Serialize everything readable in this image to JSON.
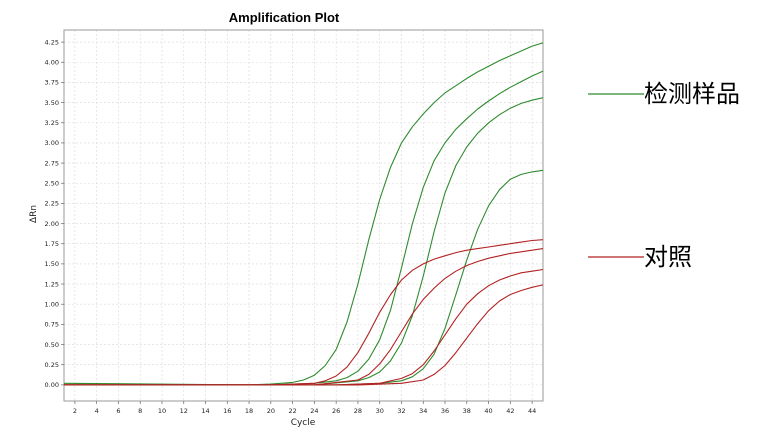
{
  "chart_data": {
    "type": "line",
    "title": "Amplification Plot",
    "xlabel": "Cycle",
    "ylabel": "ΔRn",
    "xlim": [
      1,
      45
    ],
    "ylim": [
      -0.2,
      4.4
    ],
    "x_ticks": [
      2,
      4,
      6,
      8,
      10,
      12,
      14,
      16,
      18,
      20,
      22,
      24,
      26,
      28,
      30,
      32,
      34,
      36,
      38,
      40,
      42,
      44
    ],
    "y_ticks": [
      "0.00",
      "0.25",
      "0.50",
      "0.75",
      "1.00",
      "1.25",
      "1.50",
      "1.75",
      "2.00",
      "2.25",
      "2.50",
      "2.75",
      "3.00",
      "3.25",
      "3.50",
      "3.75",
      "4.00",
      "4.25"
    ],
    "grid": true,
    "legend_position": "right",
    "legend": [
      {
        "label": "检测样品",
        "color": "#2e8b2e"
      },
      {
        "label": "对照",
        "color": "#b22222"
      }
    ],
    "series": [
      {
        "group": "检测样品",
        "color": "#2e8b2e",
        "x": [
          1,
          18,
          20,
          22,
          23,
          24,
          25,
          26,
          27,
          28,
          29,
          30,
          31,
          32,
          33,
          34,
          35,
          36,
          37,
          38,
          39,
          40,
          41,
          42,
          43,
          44,
          45
        ],
        "y": [
          0.02,
          0.0,
          0.01,
          0.03,
          0.06,
          0.12,
          0.24,
          0.44,
          0.78,
          1.25,
          1.8,
          2.3,
          2.7,
          3.0,
          3.2,
          3.36,
          3.5,
          3.62,
          3.71,
          3.8,
          3.88,
          3.95,
          4.02,
          4.08,
          4.14,
          4.2,
          4.24
        ]
      },
      {
        "group": "检测样品",
        "color": "#2e8b2e",
        "x": [
          1,
          20,
          24,
          26,
          27,
          28,
          29,
          30,
          31,
          32,
          33,
          34,
          35,
          36,
          37,
          38,
          39,
          40,
          41,
          42,
          43,
          44,
          45
        ],
        "y": [
          0.0,
          0.0,
          0.02,
          0.05,
          0.09,
          0.17,
          0.32,
          0.56,
          0.93,
          1.45,
          2.0,
          2.45,
          2.78,
          3.0,
          3.17,
          3.3,
          3.42,
          3.52,
          3.61,
          3.69,
          3.76,
          3.83,
          3.89
        ]
      },
      {
        "group": "检测样品",
        "color": "#2e8b2e",
        "x": [
          1,
          24,
          28,
          29,
          30,
          31,
          32,
          33,
          34,
          35,
          36,
          37,
          38,
          39,
          40,
          41,
          42,
          43,
          44,
          45
        ],
        "y": [
          0.0,
          0.0,
          0.05,
          0.09,
          0.16,
          0.3,
          0.52,
          0.86,
          1.35,
          1.9,
          2.38,
          2.72,
          2.95,
          3.12,
          3.25,
          3.35,
          3.43,
          3.49,
          3.53,
          3.56
        ]
      },
      {
        "group": "检测样品",
        "color": "#2e8b2e",
        "x": [
          1,
          26,
          30,
          32,
          33,
          34,
          35,
          36,
          37,
          38,
          39,
          40,
          41,
          42,
          43,
          44,
          45
        ],
        "y": [
          0.0,
          0.0,
          0.02,
          0.05,
          0.1,
          0.2,
          0.38,
          0.7,
          1.12,
          1.55,
          1.93,
          2.22,
          2.42,
          2.55,
          2.61,
          2.64,
          2.66
        ]
      },
      {
        "group": "对照",
        "color": "#b22222",
        "x": [
          1,
          20,
          24,
          25,
          26,
          27,
          28,
          29,
          30,
          31,
          32,
          33,
          34,
          35,
          36,
          37,
          38,
          39,
          40,
          41,
          42,
          43,
          44,
          45
        ],
        "y": [
          0.0,
          0.0,
          0.02,
          0.05,
          0.11,
          0.22,
          0.4,
          0.64,
          0.9,
          1.12,
          1.3,
          1.42,
          1.5,
          1.56,
          1.6,
          1.64,
          1.67,
          1.69,
          1.71,
          1.73,
          1.75,
          1.77,
          1.79,
          1.8
        ]
      },
      {
        "group": "对照",
        "color": "#b22222",
        "x": [
          1,
          24,
          28,
          29,
          30,
          31,
          32,
          33,
          34,
          35,
          36,
          37,
          38,
          39,
          40,
          41,
          42,
          43,
          44,
          45
        ],
        "y": [
          0.0,
          0.0,
          0.06,
          0.13,
          0.26,
          0.44,
          0.66,
          0.88,
          1.06,
          1.2,
          1.32,
          1.41,
          1.48,
          1.53,
          1.57,
          1.6,
          1.63,
          1.65,
          1.67,
          1.69
        ]
      },
      {
        "group": "对照",
        "color": "#b22222",
        "x": [
          1,
          26,
          30,
          32,
          33,
          34,
          35,
          36,
          37,
          38,
          39,
          40,
          41,
          42,
          43,
          44,
          45
        ],
        "y": [
          0.0,
          0.0,
          0.02,
          0.08,
          0.14,
          0.25,
          0.42,
          0.62,
          0.82,
          1.0,
          1.13,
          1.23,
          1.3,
          1.35,
          1.39,
          1.41,
          1.43
        ]
      },
      {
        "group": "对照",
        "color": "#b22222",
        "x": [
          1,
          28,
          32,
          34,
          35,
          36,
          37,
          38,
          39,
          40,
          41,
          42,
          43,
          44,
          45
        ],
        "y": [
          0.0,
          0.0,
          0.02,
          0.06,
          0.13,
          0.24,
          0.4,
          0.58,
          0.76,
          0.92,
          1.04,
          1.12,
          1.17,
          1.21,
          1.24
        ]
      }
    ]
  }
}
